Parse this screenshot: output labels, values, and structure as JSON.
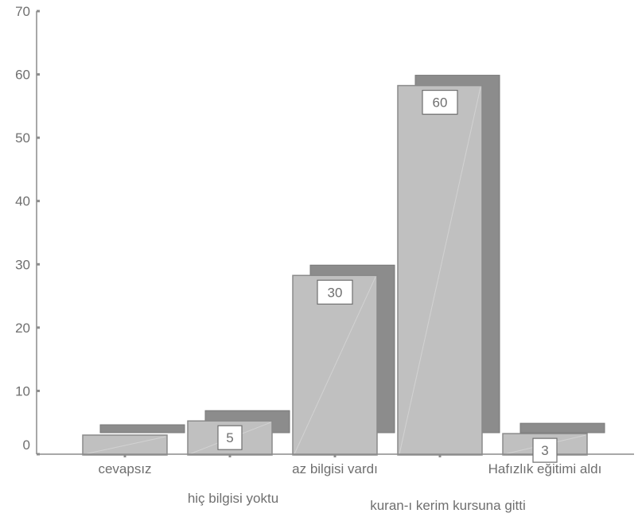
{
  "chart_data": {
    "type": "bar",
    "style": "3d",
    "title": "",
    "xlabel": "",
    "ylabel": "",
    "categories": [
      "cevapsız",
      "hiç bilgisi yoktu",
      "az bilgisi vardı",
      "kuran-ı kerim kursuna gitti",
      "Hafızlık eğitimi aldı"
    ],
    "values": [
      1,
      5,
      30,
      60,
      3
    ],
    "data_labels": [
      "",
      "5",
      "30",
      "60",
      "3"
    ],
    "ylim": [
      0,
      70
    ],
    "yticks": [
      0,
      10,
      20,
      30,
      40,
      50,
      60,
      70
    ],
    "grid": false,
    "legend": "none",
    "colors": {
      "bar_front": "#c0c0c0",
      "bar_back": "#8c8c8c",
      "axis": "#8c8c8c",
      "text": "#6f6f6f",
      "label_box": "#ffffff"
    }
  }
}
